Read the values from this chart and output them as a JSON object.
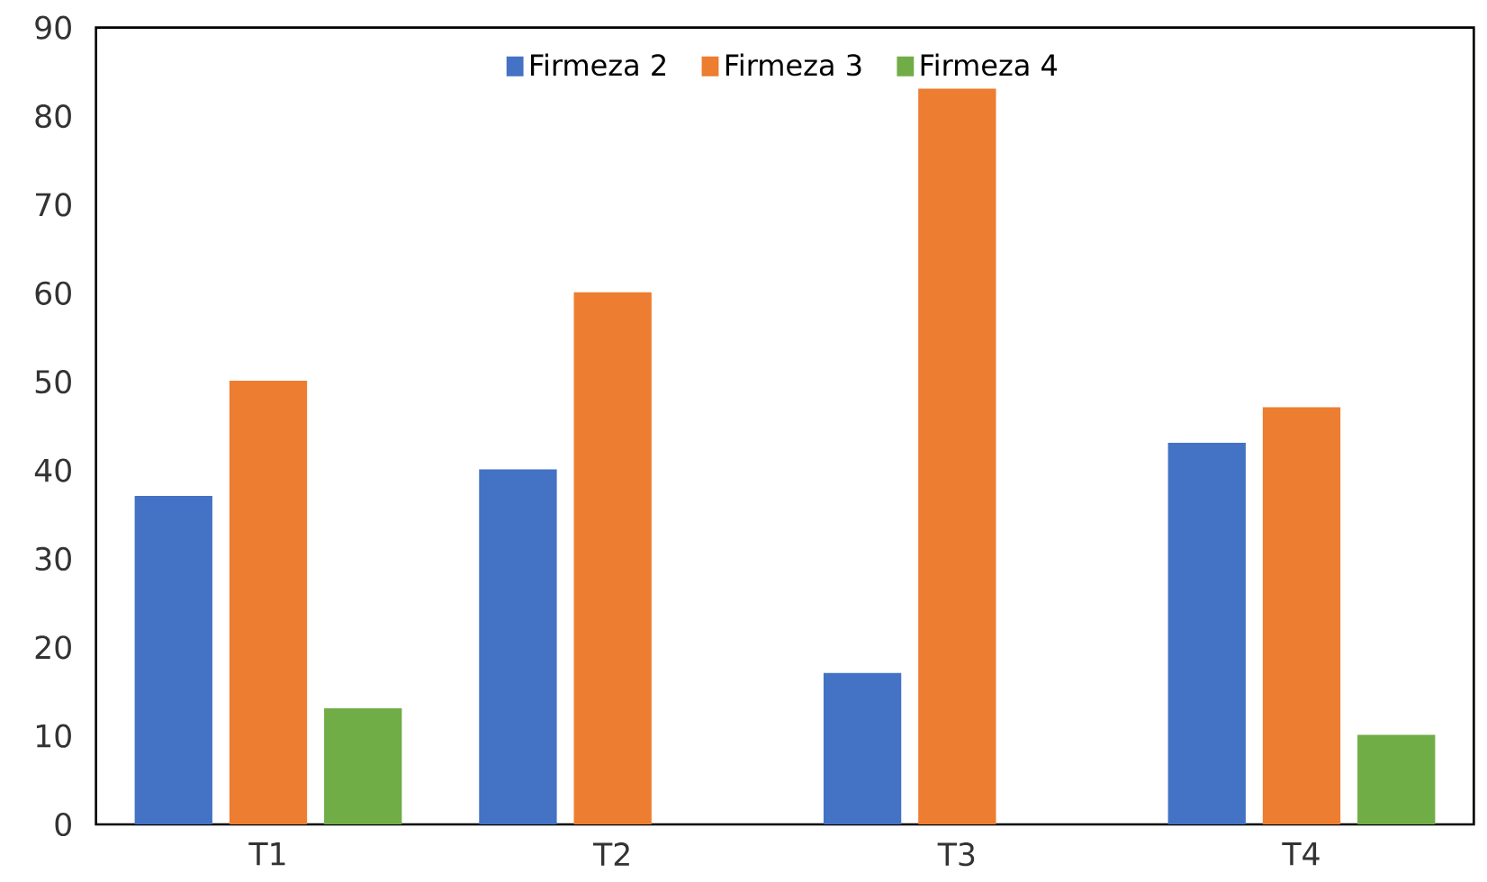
{
  "chart_data": {
    "type": "bar",
    "categories": [
      "T1",
      "T2",
      "T3",
      "T4"
    ],
    "series": [
      {
        "name": "Firmeza 2",
        "color": "#4472c4",
        "values": [
          37,
          40,
          17,
          43
        ]
      },
      {
        "name": "Firmeza 3",
        "color": "#ed7d31",
        "values": [
          50,
          60,
          83,
          47
        ]
      },
      {
        "name": "Firmeza 4",
        "color": "#70ad47",
        "values": [
          13,
          null,
          null,
          10
        ]
      }
    ],
    "ylim": [
      0,
      90
    ],
    "yticks": [
      0,
      10,
      20,
      30,
      40,
      50,
      60,
      70,
      80,
      90
    ],
    "grid": false,
    "legend": "top"
  }
}
